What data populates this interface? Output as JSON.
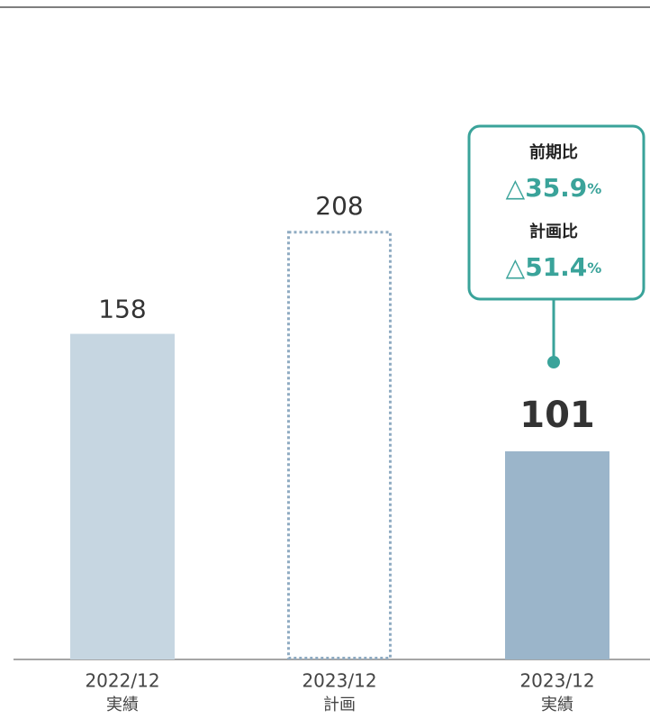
{
  "chart_data": {
    "type": "bar",
    "categories": [
      "2022/12",
      "2023/12",
      "2023/12"
    ],
    "category_sublabels": [
      "実績",
      "計画",
      "実績"
    ],
    "values": [
      158,
      208,
      101
    ],
    "colors": [
      "#c6d6e1",
      "#8fabc2",
      "#9bb5ca"
    ],
    "bar_styles": [
      "solid",
      "dotted",
      "solid"
    ],
    "highlight": 2,
    "ylim": [
      0,
      320
    ],
    "annotations": [
      {
        "title": "前期比",
        "text": "△35.9",
        "unit": "%"
      },
      {
        "title": "計画比",
        "text": "△51.4",
        "unit": "%"
      }
    ],
    "annotation_color": "#3aa39a"
  }
}
